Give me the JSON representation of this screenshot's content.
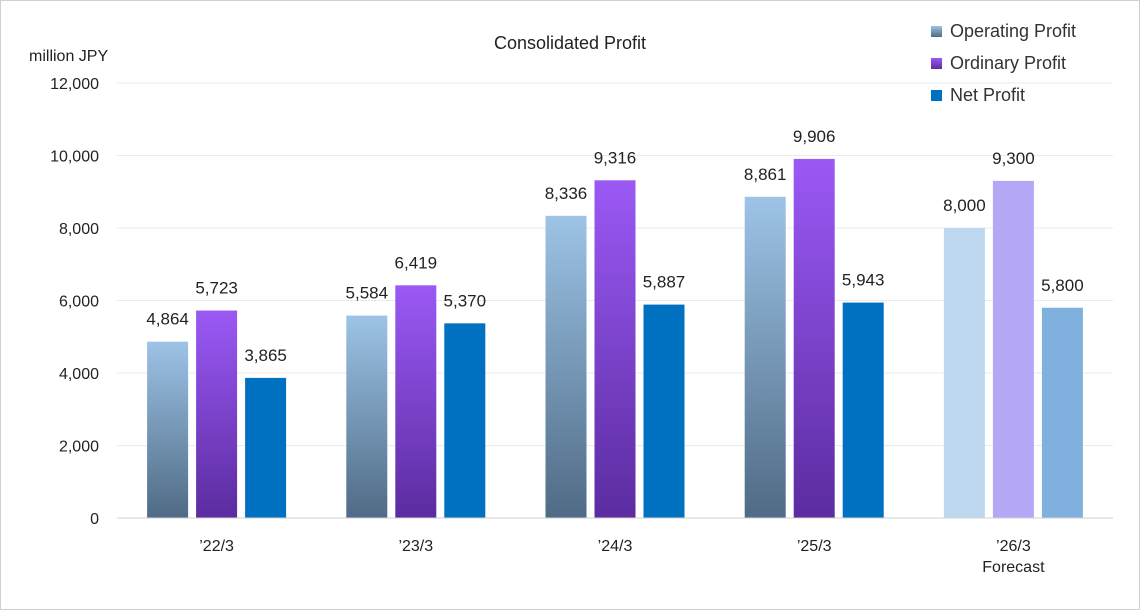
{
  "chart_data": {
    "type": "bar",
    "title": "Consolidated Profit",
    "ylabel": "million JPY",
    "xlabel": "",
    "ylim": [
      0,
      12000
    ],
    "yticks": [
      "0",
      "2,000",
      "4,000",
      "6,000",
      "8,000",
      "10,000",
      "12,000"
    ],
    "grid": true,
    "legend_position": "top-right",
    "categories": [
      "’22/3",
      "’23/3",
      "’24/3",
      "’25/3",
      "’26/3"
    ],
    "category_sublabels": [
      "",
      "",
      "",
      "",
      "Forecast"
    ],
    "series": [
      {
        "name": "Operating Profit",
        "values": [
          4864,
          5584,
          8336,
          8861,
          8000
        ],
        "labels": [
          "4,864",
          "5,584",
          "8,336",
          "8,861",
          "8,000"
        ],
        "color_top": "#9dc3e6",
        "color_bottom": "#4f6b85",
        "forecast_color": "#bdd7ee"
      },
      {
        "name": "Ordinary Profit",
        "values": [
          5723,
          6419,
          9316,
          9906,
          9300
        ],
        "labels": [
          "5,723",
          "6,419",
          "9,316",
          "9,906",
          "9,300"
        ],
        "color_top": "#9b59f5",
        "color_bottom": "#5b2ca0",
        "forecast_color": "#b4a7f5"
      },
      {
        "name": "Net Profit",
        "values": [
          3865,
          5370,
          5887,
          5943,
          5800
        ],
        "labels": [
          "3,865",
          "5,370",
          "5,887",
          "5,943",
          "5,800"
        ],
        "color_top": "#0070c0",
        "color_bottom": "#0070c0",
        "forecast_color": "#7fb0de"
      }
    ]
  }
}
